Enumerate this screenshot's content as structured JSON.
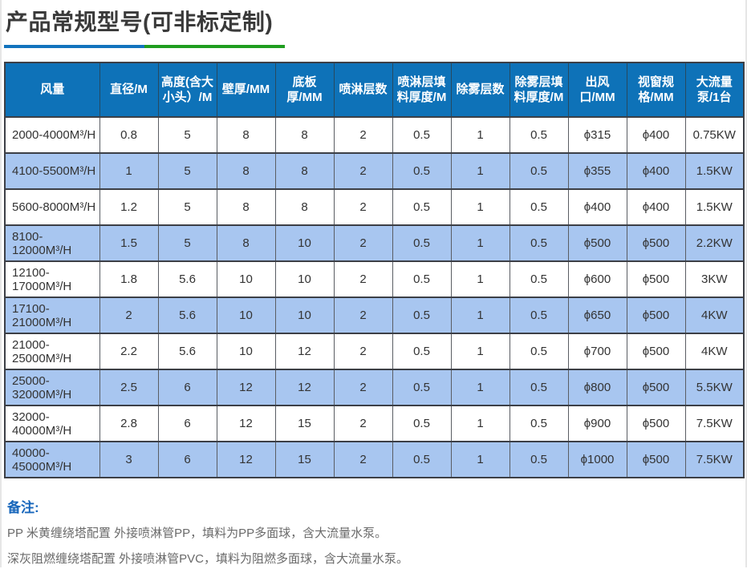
{
  "page": {
    "title": "产品常规型号(可非标定制)"
  },
  "table": {
    "headers": [
      "风量",
      "直径/M",
      "高度(含大小头）/M",
      "壁厚/MM",
      "底板厚/MM",
      "喷淋层数",
      "喷淋层填料厚度/M",
      "除雾层数",
      "除雾层填料厚度/M",
      "出风口/MM",
      "视窗规格/MM",
      "大流量泵/1台"
    ],
    "rows": [
      [
        "2000-4000M³/H",
        "0.8",
        "5",
        "8",
        "8",
        "2",
        "0.5",
        "1",
        "0.5",
        "ϕ315",
        "ϕ400",
        "0.75KW"
      ],
      [
        "4100-5500M³/H",
        "1",
        "5",
        "8",
        "8",
        "2",
        "0.5",
        "1",
        "0.5",
        "ϕ355",
        "ϕ400",
        "1.5KW"
      ],
      [
        "5600-8000M³/H",
        "1.2",
        "5",
        "8",
        "8",
        "2",
        "0.5",
        "1",
        "0.5",
        "ϕ400",
        "ϕ400",
        "1.5KW"
      ],
      [
        "8100-12000M³/H",
        "1.5",
        "5",
        "8",
        "10",
        "2",
        "0.5",
        "1",
        "0.5",
        "ϕ500",
        "ϕ500",
        "2.2KW"
      ],
      [
        "12100-17000M³/H",
        "1.8",
        "5.6",
        "10",
        "10",
        "2",
        "0.5",
        "1",
        "0.5",
        "ϕ600",
        "ϕ500",
        "3KW"
      ],
      [
        "17100-21000M³/H",
        "2",
        "5.6",
        "10",
        "10",
        "2",
        "0.5",
        "1",
        "0.5",
        "ϕ650",
        "ϕ500",
        "4KW"
      ],
      [
        "21000-25000M³/H",
        "2.2",
        "5.6",
        "10",
        "12",
        "2",
        "0.5",
        "1",
        "0.5",
        "ϕ700",
        "ϕ500",
        "4KW"
      ],
      [
        "25000-32000M³/H",
        "2.5",
        "6",
        "12",
        "12",
        "2",
        "0.5",
        "1",
        "0.5",
        "ϕ800",
        "ϕ500",
        "5.5KW"
      ],
      [
        "32000-40000M³/H",
        "2.8",
        "6",
        "12",
        "15",
        "2",
        "0.5",
        "1",
        "0.5",
        "ϕ900",
        "ϕ500",
        "7.5KW"
      ],
      [
        "40000-45000M³/H",
        "3",
        "6",
        "12",
        "15",
        "2",
        "0.5",
        "1",
        "0.5",
        "ϕ1000",
        "ϕ500",
        "7.5KW"
      ]
    ]
  },
  "notes": {
    "label": "备注:",
    "lines": [
      "PP 米黄缠绕塔配置 外接喷淋管PP，填料为PP多面球，含大流量水泵。",
      "深灰阻燃缠绕塔配置 外接喷淋管PVC，填料为阻燃多面球，含大流量水泵。"
    ]
  },
  "colors": {
    "header_bg": "#0e72b8",
    "row_alt_bg": "#a8c6f0",
    "accent_blue": "#1273bd",
    "accent_green": "#1f9d1f",
    "notes_label_color": "#1766bb"
  }
}
